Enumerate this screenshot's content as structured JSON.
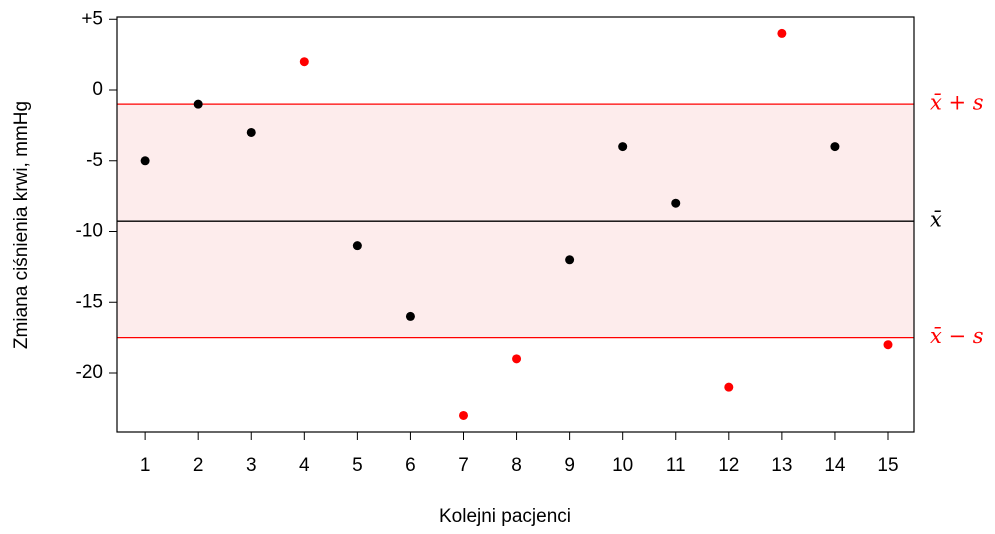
{
  "chart_data": {
    "type": "scatter",
    "x_label": "Kolejni pacjenci",
    "y_label": "Zmiana ciśnienia krwi, mmHg",
    "x": [
      1,
      2,
      3,
      4,
      5,
      6,
      7,
      8,
      9,
      10,
      11,
      12,
      13,
      14,
      15
    ],
    "series": [
      {
        "values": [
          -5,
          -1,
          -3,
          2,
          -11,
          -16,
          -23,
          -19,
          -12,
          -4,
          -8,
          -21,
          4,
          -4,
          -18
        ],
        "colors": [
          "#000000",
          "#000000",
          "#000000",
          "#ff0000",
          "#000000",
          "#000000",
          "#ff0000",
          "#ff0000",
          "#000000",
          "#000000",
          "#000000",
          "#ff0000",
          "#ff0000",
          "#000000",
          "#ff0000"
        ]
      }
    ],
    "xlim": [
      0.47,
      15.49
    ],
    "xticks": [
      1,
      2,
      3,
      4,
      5,
      6,
      7,
      8,
      9,
      10,
      11,
      12,
      13,
      14,
      15
    ],
    "ylim": [
      -24.17,
      5.16
    ],
    "yticks": [
      {
        "value": 5,
        "label": "+5"
      },
      0,
      -5,
      -10,
      -15,
      -20
    ],
    "reference_lines": [
      {
        "value": -1.0,
        "label": "x̄ + s",
        "color": "#ff0000"
      },
      {
        "value": -9.27,
        "label": "x̄",
        "color": "#000000"
      },
      {
        "value": -17.5,
        "label": "x̄ − s",
        "color": "#ff0000"
      }
    ],
    "band_color": "#fdecec"
  }
}
